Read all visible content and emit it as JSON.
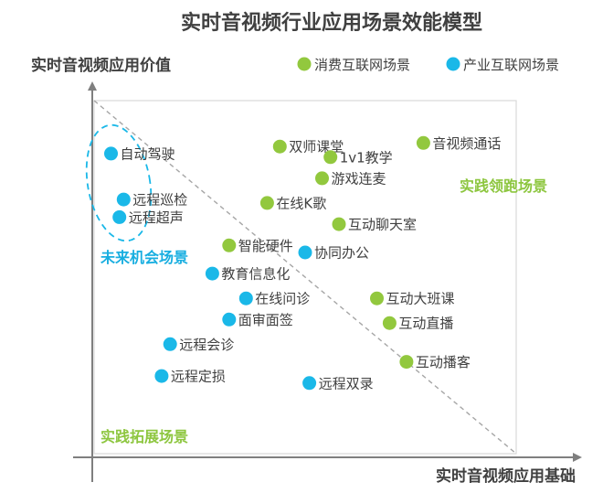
{
  "chart_data": {
    "type": "scatter",
    "title": "实时音视频行业应用场景效能模型",
    "xlabel": "实时音视频应用基础",
    "ylabel": "实时音视频应用价值",
    "xlim": [
      0,
      100
    ],
    "ylim": [
      0,
      100
    ],
    "grid": false,
    "legend_position": "top-right",
    "legend": [
      {
        "name": "消费互联网场景",
        "color": "#92c83e"
      },
      {
        "name": "产业互联网场景",
        "color": "#1ab8e8"
      }
    ],
    "quadrant_labels": [
      {
        "text": "实践领跑场景",
        "color": "#8dc63f"
      },
      {
        "text": "未来机会场景",
        "color": "#18aee0"
      },
      {
        "text": "实践拓展场景",
        "color": "#8dc63f"
      }
    ],
    "points": [
      {
        "label": "双师课堂",
        "series": 0,
        "x": 44,
        "y": 87
      },
      {
        "label": "音视频通话",
        "series": 0,
        "x": 78,
        "y": 88
      },
      {
        "label": "1v1教学",
        "series": 0,
        "x": 56,
        "y": 84
      },
      {
        "label": "游戏连麦",
        "series": 0,
        "x": 54,
        "y": 78
      },
      {
        "label": "在线K歌",
        "series": 0,
        "x": 41,
        "y": 71
      },
      {
        "label": "互动聊天室",
        "series": 0,
        "x": 58,
        "y": 65
      },
      {
        "label": "智能硬件",
        "series": 0,
        "x": 32,
        "y": 59
      },
      {
        "label": "互动大班课",
        "series": 0,
        "x": 67,
        "y": 44
      },
      {
        "label": "互动直播",
        "series": 0,
        "x": 70,
        "y": 37
      },
      {
        "label": "互动播客",
        "series": 0,
        "x": 74,
        "y": 26
      },
      {
        "label": "自动驾驶",
        "series": 1,
        "x": 4,
        "y": 85
      },
      {
        "label": "远程巡检",
        "series": 1,
        "x": 7,
        "y": 72
      },
      {
        "label": "远程超声",
        "series": 1,
        "x": 6,
        "y": 67
      },
      {
        "label": "协同办公",
        "series": 1,
        "x": 50,
        "y": 57
      },
      {
        "label": "教育信息化",
        "series": 1,
        "x": 28,
        "y": 51
      },
      {
        "label": "在线问诊",
        "series": 1,
        "x": 36,
        "y": 44
      },
      {
        "label": "面审面签",
        "series": 1,
        "x": 32,
        "y": 38
      },
      {
        "label": "远程会诊",
        "series": 1,
        "x": 18,
        "y": 31
      },
      {
        "label": "远程定损",
        "series": 1,
        "x": 16,
        "y": 22
      },
      {
        "label": "远程双录",
        "series": 1,
        "x": 51,
        "y": 20
      }
    ]
  }
}
